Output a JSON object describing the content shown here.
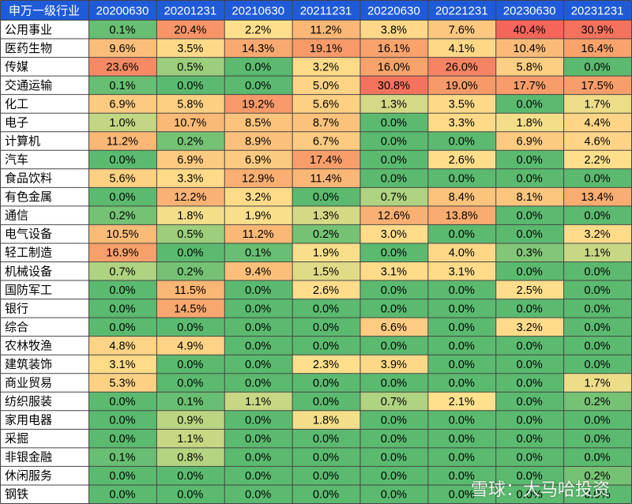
{
  "chart_data": {
    "type": "heatmap",
    "corner_label": "申万一级行业",
    "columns": [
      "20200630",
      "20201231",
      "20210630",
      "20211231",
      "20220630",
      "20221231",
      "20230630",
      "20231231"
    ],
    "rows": [
      {
        "label": "公用事业",
        "values": [
          "0.1%",
          "20.4%",
          "2.2%",
          "11.2%",
          "3.8%",
          "7.6%",
          "40.4%",
          "30.9%"
        ]
      },
      {
        "label": "医药生物",
        "values": [
          "9.6%",
          "3.5%",
          "14.3%",
          "19.1%",
          "16.1%",
          "4.1%",
          "10.4%",
          "16.4%"
        ]
      },
      {
        "label": "传媒",
        "values": [
          "23.6%",
          "0.5%",
          "0.0%",
          "3.2%",
          "16.0%",
          "26.0%",
          "5.8%",
          "0.0%"
        ]
      },
      {
        "label": "交通运输",
        "values": [
          "0.1%",
          "0.0%",
          "0.0%",
          "5.0%",
          "30.8%",
          "19.0%",
          "17.7%",
          "17.5%"
        ]
      },
      {
        "label": "化工",
        "values": [
          "6.9%",
          "5.8%",
          "19.2%",
          "5.6%",
          "1.3%",
          "3.5%",
          "0.0%",
          "1.7%"
        ]
      },
      {
        "label": "电子",
        "values": [
          "1.0%",
          "10.7%",
          "8.5%",
          "8.7%",
          "0.0%",
          "3.3%",
          "1.8%",
          "4.4%"
        ]
      },
      {
        "label": "计算机",
        "values": [
          "11.2%",
          "0.2%",
          "8.9%",
          "6.7%",
          "0.0%",
          "0.0%",
          "6.9%",
          "4.6%"
        ]
      },
      {
        "label": "汽车",
        "values": [
          "0.0%",
          "6.9%",
          "6.9%",
          "17.4%",
          "0.0%",
          "2.6%",
          "0.0%",
          "2.2%"
        ]
      },
      {
        "label": "食品饮料",
        "values": [
          "5.6%",
          "3.3%",
          "12.9%",
          "11.4%",
          "0.0%",
          "0.0%",
          "0.0%",
          "0.0%"
        ]
      },
      {
        "label": "有色金属",
        "values": [
          "0.0%",
          "12.2%",
          "3.2%",
          "0.0%",
          "0.7%",
          "8.4%",
          "8.1%",
          "13.4%"
        ]
      },
      {
        "label": "通信",
        "values": [
          "0.2%",
          "1.8%",
          "1.9%",
          "1.3%",
          "12.6%",
          "13.8%",
          "0.0%",
          "0.0%"
        ]
      },
      {
        "label": "电气设备",
        "values": [
          "10.5%",
          "0.5%",
          "11.2%",
          "0.2%",
          "3.0%",
          "0.0%",
          "0.0%",
          "3.2%"
        ]
      },
      {
        "label": "轻工制造",
        "values": [
          "16.9%",
          "0.0%",
          "0.1%",
          "1.9%",
          "0.0%",
          "4.0%",
          "0.3%",
          "1.1%"
        ]
      },
      {
        "label": "机械设备",
        "values": [
          "0.7%",
          "0.2%",
          "9.4%",
          "1.5%",
          "3.1%",
          "3.1%",
          "0.0%",
          "0.0%"
        ]
      },
      {
        "label": "国防军工",
        "values": [
          "0.0%",
          "11.5%",
          "0.0%",
          "2.6%",
          "0.0%",
          "0.0%",
          "2.5%",
          "0.0%"
        ]
      },
      {
        "label": "银行",
        "values": [
          "0.0%",
          "14.5%",
          "0.0%",
          "0.0%",
          "0.0%",
          "0.0%",
          "0.0%",
          "0.0%"
        ]
      },
      {
        "label": "综合",
        "values": [
          "0.0%",
          "0.0%",
          "0.0%",
          "0.0%",
          "6.6%",
          "0.0%",
          "3.2%",
          "0.0%"
        ]
      },
      {
        "label": "农林牧渔",
        "values": [
          "4.8%",
          "4.9%",
          "0.0%",
          "0.0%",
          "0.0%",
          "0.0%",
          "0.0%",
          "0.0%"
        ]
      },
      {
        "label": "建筑装饰",
        "values": [
          "3.1%",
          "0.0%",
          "0.0%",
          "2.3%",
          "3.9%",
          "0.0%",
          "0.0%",
          "0.0%"
        ]
      },
      {
        "label": "商业贸易",
        "values": [
          "5.3%",
          "0.0%",
          "0.0%",
          "0.0%",
          "0.0%",
          "0.0%",
          "0.0%",
          "1.7%"
        ]
      },
      {
        "label": "纺织服装",
        "values": [
          "0.0%",
          "0.1%",
          "1.1%",
          "0.0%",
          "0.7%",
          "2.1%",
          "0.0%",
          "0.2%"
        ]
      },
      {
        "label": "家用电器",
        "values": [
          "0.0%",
          "0.9%",
          "0.0%",
          "1.8%",
          "0.0%",
          "0.0%",
          "0.0%",
          "0.0%"
        ]
      },
      {
        "label": "采掘",
        "values": [
          "0.0%",
          "1.1%",
          "0.0%",
          "0.0%",
          "0.0%",
          "0.0%",
          "0.0%",
          "0.0%"
        ]
      },
      {
        "label": "非银金融",
        "values": [
          "0.1%",
          "0.8%",
          "0.0%",
          "0.0%",
          "0.0%",
          "0.0%",
          "0.0%",
          "0.0%"
        ]
      },
      {
        "label": "休闲服务",
        "values": [
          "0.0%",
          "0.0%",
          "0.0%",
          "0.0%",
          "0.0%",
          "0.0%",
          "0.0%",
          "0.2%"
        ]
      },
      {
        "label": "钢铁",
        "values": [
          "0.0%",
          "0.0%",
          "0.0%",
          "0.0%",
          "0.0%",
          "0.0%",
          "0.0%",
          "0.0%"
        ]
      }
    ],
    "colors": {
      "header_bg": "#1f5bd8",
      "header_text": "#ffffff",
      "zero": "#5bba6f",
      "low": "#a9d27f",
      "mid": "#ffe08c",
      "high": "#f8a66d",
      "max": "#f4665a",
      "grid": "#444444"
    }
  },
  "watermark": "雪球：大马哈投资"
}
